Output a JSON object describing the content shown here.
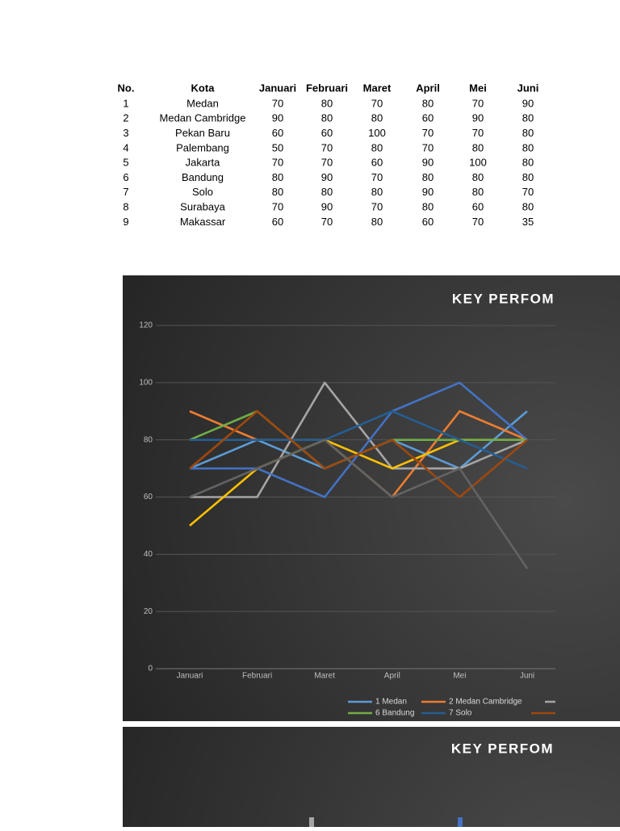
{
  "table": {
    "header": [
      "No.",
      "Kota",
      "Januari",
      "Februari",
      "Maret",
      "April",
      "Mei",
      "Juni"
    ],
    "rows": [
      [
        1,
        "Medan",
        70,
        80,
        70,
        80,
        70,
        90
      ],
      [
        2,
        "Medan Cambridge",
        90,
        80,
        80,
        60,
        90,
        80
      ],
      [
        3,
        "Pekan Baru",
        60,
        60,
        100,
        70,
        70,
        80
      ],
      [
        4,
        "Palembang",
        50,
        70,
        80,
        70,
        80,
        80
      ],
      [
        5,
        "Jakarta",
        70,
        70,
        60,
        90,
        100,
        80
      ],
      [
        6,
        "Bandung",
        80,
        90,
        70,
        80,
        80,
        80
      ],
      [
        7,
        "Solo",
        80,
        80,
        80,
        90,
        80,
        70
      ],
      [
        8,
        "Surabaya",
        70,
        90,
        70,
        80,
        60,
        80
      ],
      [
        9,
        "Makassar",
        60,
        70,
        80,
        60,
        70,
        35
      ]
    ]
  },
  "chart_data": [
    {
      "type": "line",
      "title": "KEY PERFOM",
      "categories": [
        "Januari",
        "Februari",
        "Maret",
        "April",
        "Mei",
        "Juni"
      ],
      "ylim": [
        0,
        120
      ],
      "yticks": [
        0,
        20,
        40,
        60,
        80,
        100,
        120
      ],
      "grid": true,
      "series": [
        {
          "name": "1 Medan",
          "color": "#5b9bd5",
          "values": [
            70,
            80,
            70,
            80,
            70,
            90
          ]
        },
        {
          "name": "2 Medan Cambridge",
          "color": "#ed7d31",
          "values": [
            90,
            80,
            80,
            60,
            90,
            80
          ]
        },
        {
          "color": "#a5a5a5",
          "values": [
            60,
            60,
            100,
            70,
            70,
            80
          ]
        },
        {
          "color": "#ffc000",
          "values": [
            50,
            70,
            80,
            70,
            80,
            80
          ]
        },
        {
          "color": "#4472c4",
          "values": [
            70,
            70,
            60,
            90,
            100,
            80
          ]
        },
        {
          "name": "6 Bandung",
          "color": "#70ad47",
          "values": [
            80,
            90,
            70,
            80,
            80,
            80
          ]
        },
        {
          "name": "7 Solo",
          "color": "#255e91",
          "values": [
            80,
            80,
            80,
            90,
            80,
            70
          ]
        },
        {
          "color": "#9e480e",
          "values": [
            70,
            90,
            70,
            80,
            60,
            80
          ]
        },
        {
          "color": "#636363",
          "values": [
            60,
            70,
            80,
            60,
            70,
            35
          ]
        }
      ]
    },
    {
      "type": "bar",
      "title": "KEY PERFOM"
    }
  ]
}
